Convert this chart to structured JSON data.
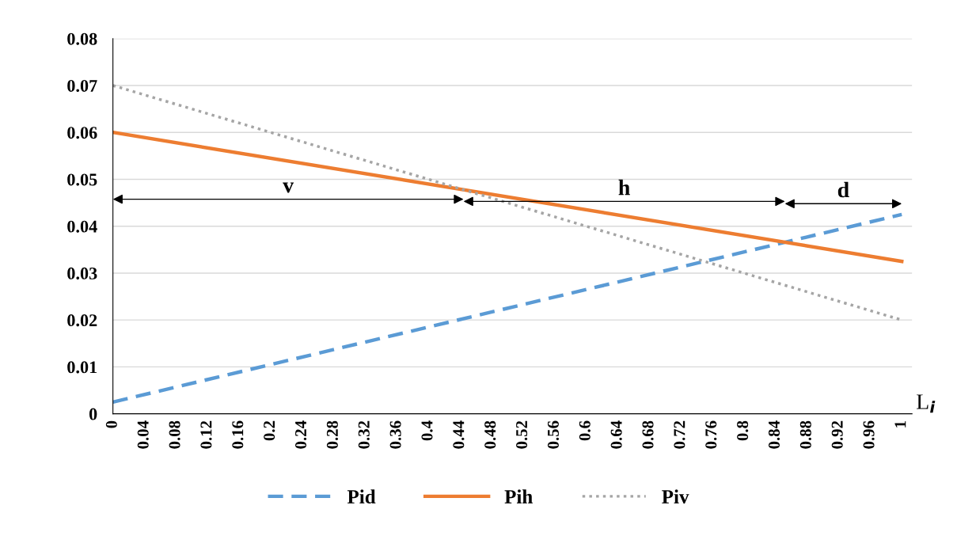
{
  "chart_data": {
    "type": "line",
    "xlabel": "L$_{i}$",
    "xlim": [
      0,
      1.013
    ],
    "xticks": [
      0,
      0.04,
      0.08,
      0.12,
      0.16,
      0.2,
      0.24,
      0.28,
      0.32,
      0.36,
      0.4,
      0.44,
      0.48,
      0.52,
      0.56,
      0.6,
      0.64,
      0.68,
      0.72,
      0.76,
      0.8,
      0.84,
      0.88,
      0.92,
      0.96,
      1
    ],
    "x": [
      0,
      1
    ],
    "ylim": [
      0,
      0.08
    ],
    "yticks": [
      0,
      0.01,
      0.02,
      0.03,
      0.04,
      0.05,
      0.06,
      0.07,
      0.08
    ],
    "series": [
      {
        "name": "Pid",
        "color": "#5b9bd5",
        "line_style": "dashed",
        "values": [
          0.0025,
          0.0425
        ]
      },
      {
        "name": "Pih",
        "color": "#ed7d31",
        "line_style": "solid",
        "values": [
          0.06,
          0.0325
        ]
      },
      {
        "name": "Piv",
        "color": "#a5a5a5",
        "line_style": "dotted",
        "values": [
          0.07,
          0.02
        ]
      }
    ],
    "annotations": [
      "v",
      "h",
      "d"
    ],
    "grid": "y",
    "legend": "bottom"
  }
}
